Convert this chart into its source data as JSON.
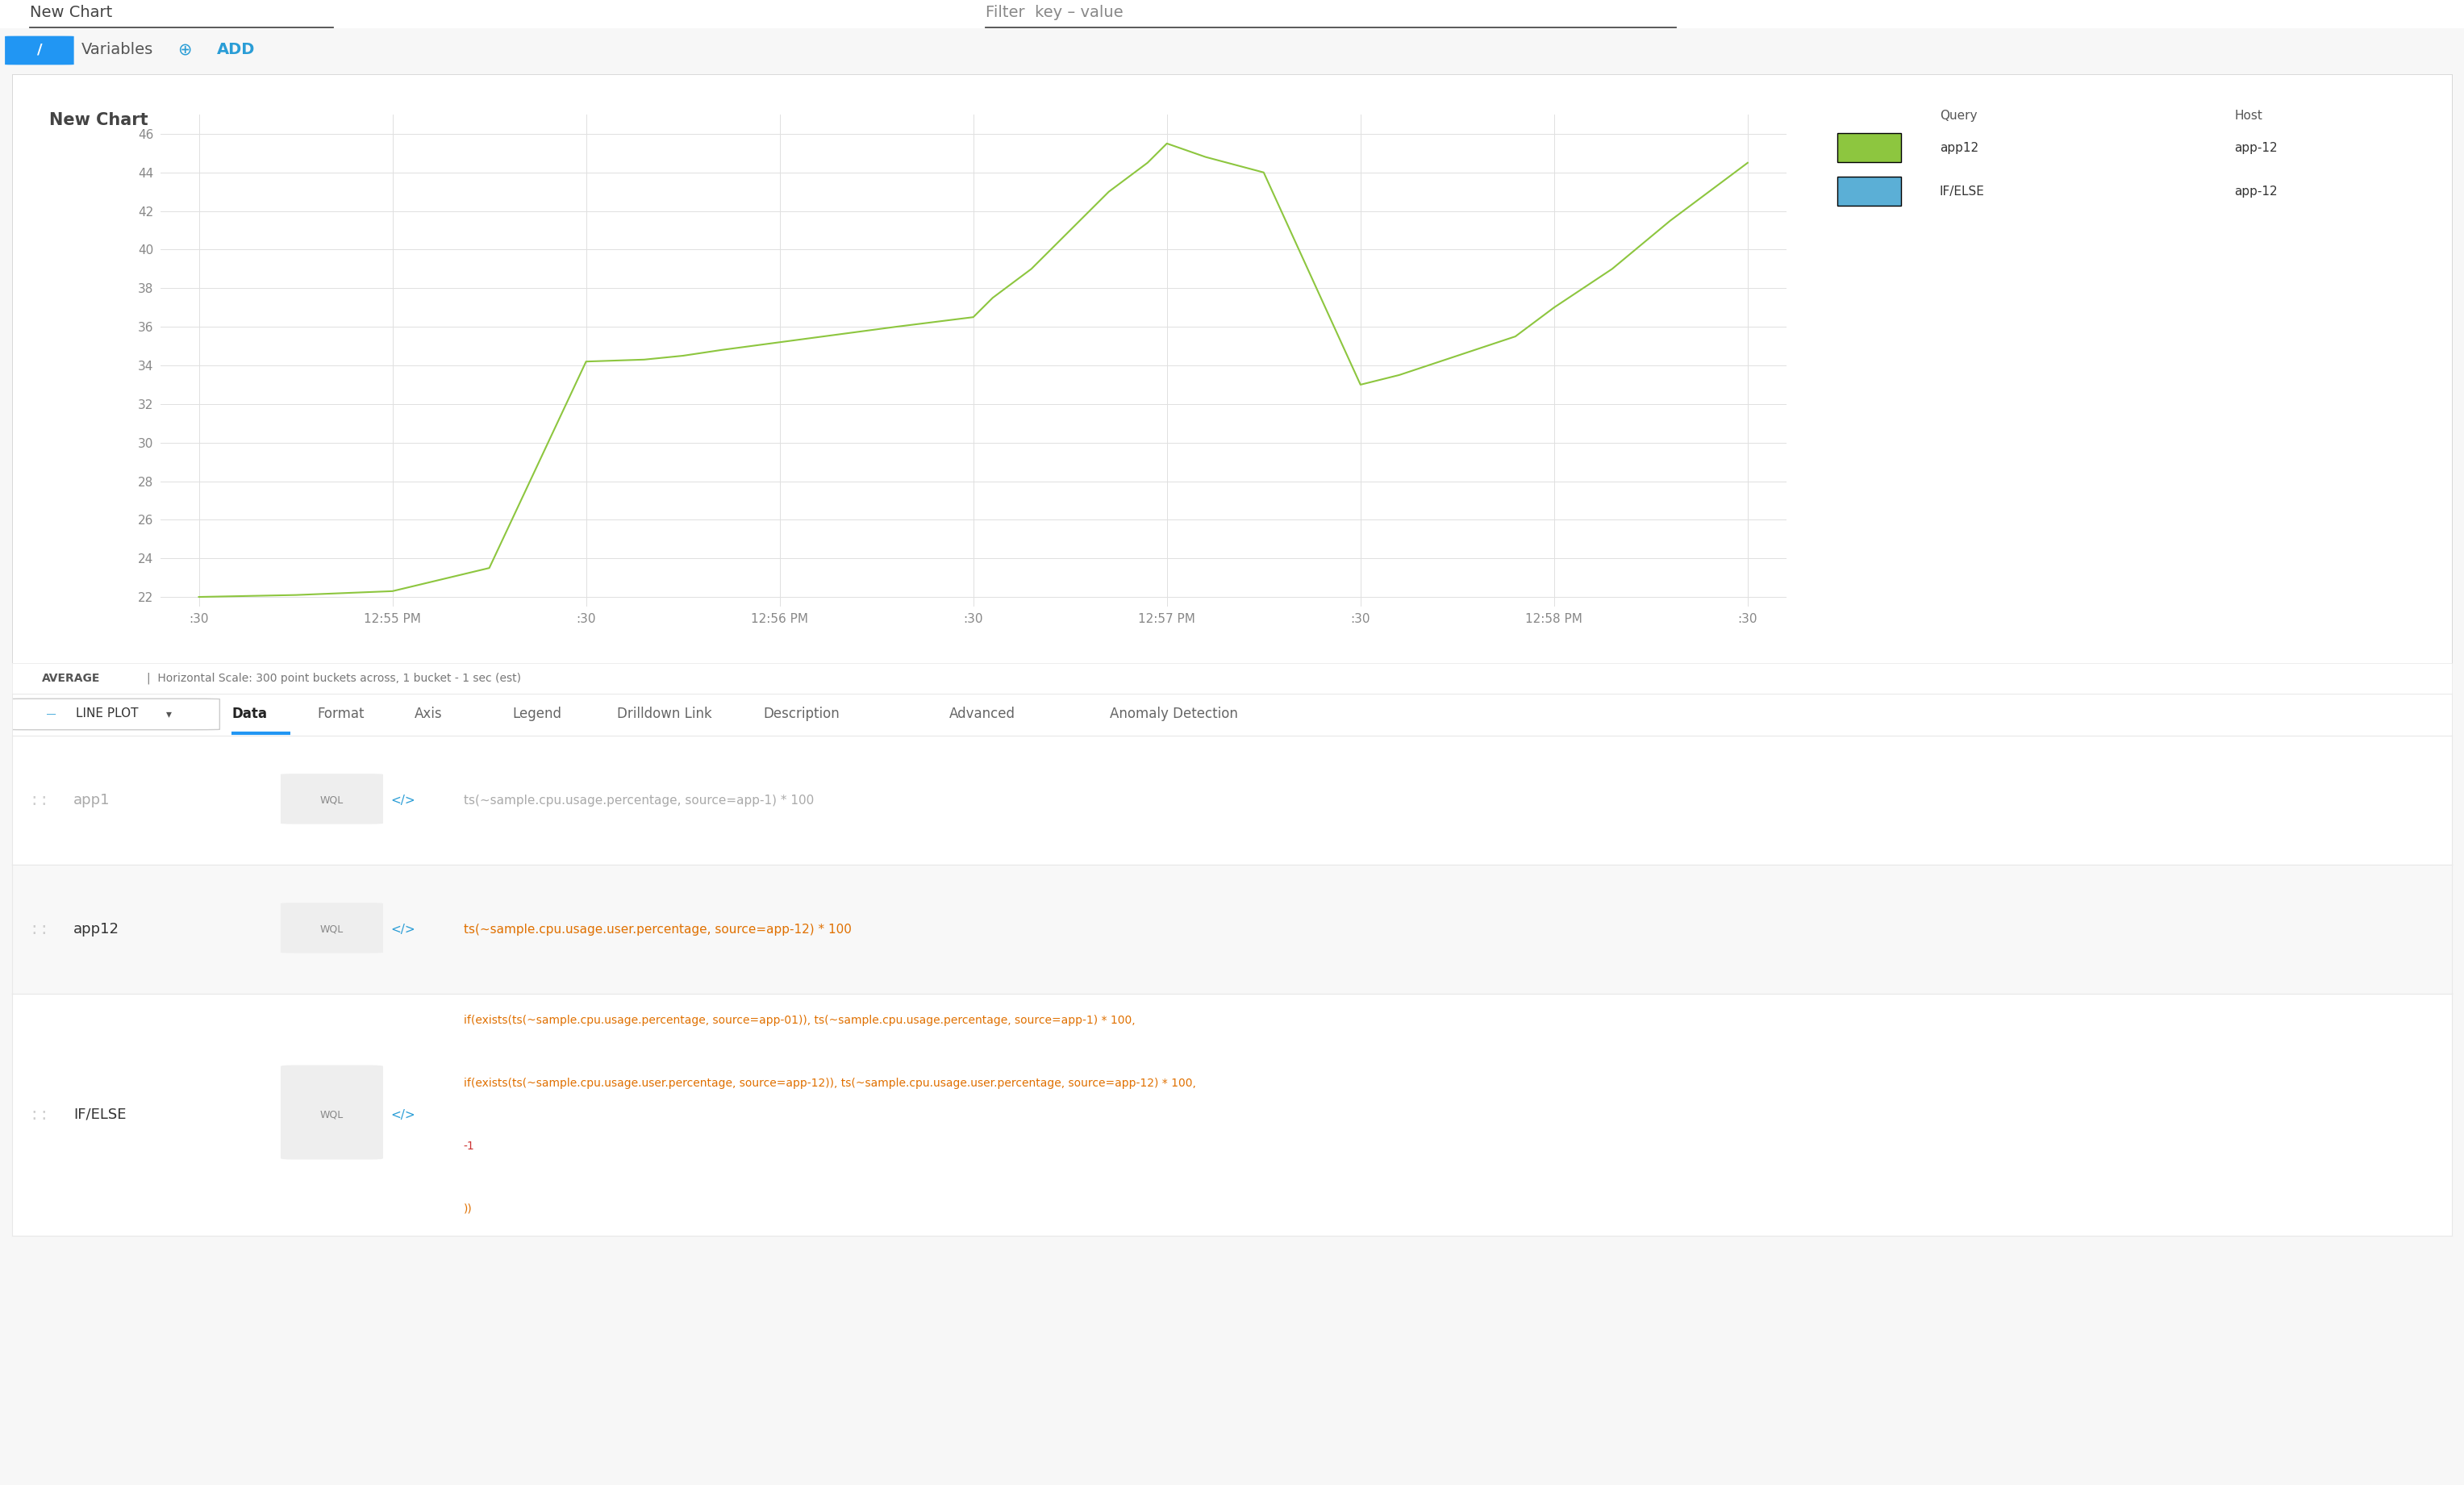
{
  "page_bg": "#f7f7f7",
  "chart_bg": "#ffffff",
  "chart_title": "New Chart",
  "chart_title_color": "#444444",
  "chart_title_fontsize": 13,
  "variables_label": "Variables",
  "add_label": "ADD",
  "yticks": [
    22,
    24,
    26,
    28,
    30,
    32,
    34,
    36,
    38,
    40,
    42,
    44,
    46
  ],
  "ylim": [
    21.5,
    47
  ],
  "xtick_labels": [
    ":30",
    "12:55 PM",
    ":30",
    "12:56 PM",
    ":30",
    "12:57 PM",
    ":30",
    "12:58 PM",
    ":30"
  ],
  "line_color": "#8dc63f",
  "line_x": [
    0,
    0.5,
    1,
    1.5,
    2,
    2.3,
    2.5,
    2.7,
    3,
    3.3,
    3.6,
    4,
    4.1,
    4.3,
    4.5,
    4.7,
    4.9,
    5,
    5.2,
    5.5,
    6,
    6.2,
    6.5,
    6.8,
    7,
    7.3,
    7.6,
    8
  ],
  "line_y": [
    22.0,
    22.1,
    22.3,
    23.5,
    34.2,
    34.3,
    34.5,
    34.8,
    35.2,
    35.6,
    36.0,
    36.5,
    37.5,
    39.0,
    41.0,
    43.0,
    44.5,
    45.5,
    44.8,
    44.0,
    33.0,
    33.5,
    34.5,
    35.5,
    37.0,
    39.0,
    41.5,
    44.5
  ],
  "legend_items": [
    {
      "label": "app12",
      "color": "#8dc63f"
    },
    {
      "label": "IF/ELSE",
      "color": "#5bafd6"
    }
  ],
  "legend_col_headers": [
    "Query",
    "Host"
  ],
  "legend_row_values": [
    {
      "query": "app12",
      "host": "app-12"
    },
    {
      "query": "IF/ELSE",
      "host": "app-12"
    }
  ],
  "avg_label": "AVERAGE  |  Horizontal Scale: 300 point buckets across, 1 bucket - 1 sec (est)",
  "tabs": [
    "LINE PLOT",
    "Data",
    "Format",
    "Axis",
    "Legend",
    "Drilldown Link",
    "Description",
    "Advanced",
    "Anomaly Detection"
  ],
  "active_tab": "Data",
  "queries": [
    {
      "name": "app1",
      "type": "WQL",
      "code": "ts(~sample.cpu.usage.percentage, source=app-1) * 100",
      "name_color": "#aaaaaa",
      "code_color": "#aaaaaa"
    },
    {
      "name": "app12",
      "type": "WQL",
      "code": "ts(~sample.cpu.usage.user.percentage, source=app-12) * 100",
      "name_color": "#333333",
      "code_color": "#e07000"
    },
    {
      "name": "IF/ELSE",
      "type": "WQL",
      "code_lines": [
        "if(exists(ts(~sample.cpu.usage.percentage, source=app-01)), ts(~sample.cpu.usage.percentage, source=app-1) * 100,",
        "if(exists(ts(~sample.cpu.usage.user.percentage, source=app-12)), ts(~sample.cpu.usage.user.percentage, source=app-12) * 100,",
        "-1",
        "))"
      ],
      "name_color": "#333333",
      "code_color": "#e07000"
    }
  ],
  "icon_pencil_bg": "#2196f3",
  "variables_color": "#555555",
  "add_color": "#2a9dd6",
  "filter_label": "Filter",
  "filter_value": "key – value",
  "new_chart_header": "New Chart",
  "grid_color": "#e0e0e0",
  "axis_tick_color": "#888888",
  "tab_active_underline": "#2196f3",
  "tab_text_color": "#666666",
  "tab_active_text_color": "#222222",
  "wql_bg": "#eeeeee",
  "wql_color": "#888888",
  "angle_bracket_color": "#2a9dd6",
  "row_separator_color": "#e8e8e8",
  "drag_handle_color": "#cccccc",
  "header_underline_color": "#555555",
  "avg_bold": "AVERAGE",
  "lineplot_icon_color": "#2a9dd6"
}
